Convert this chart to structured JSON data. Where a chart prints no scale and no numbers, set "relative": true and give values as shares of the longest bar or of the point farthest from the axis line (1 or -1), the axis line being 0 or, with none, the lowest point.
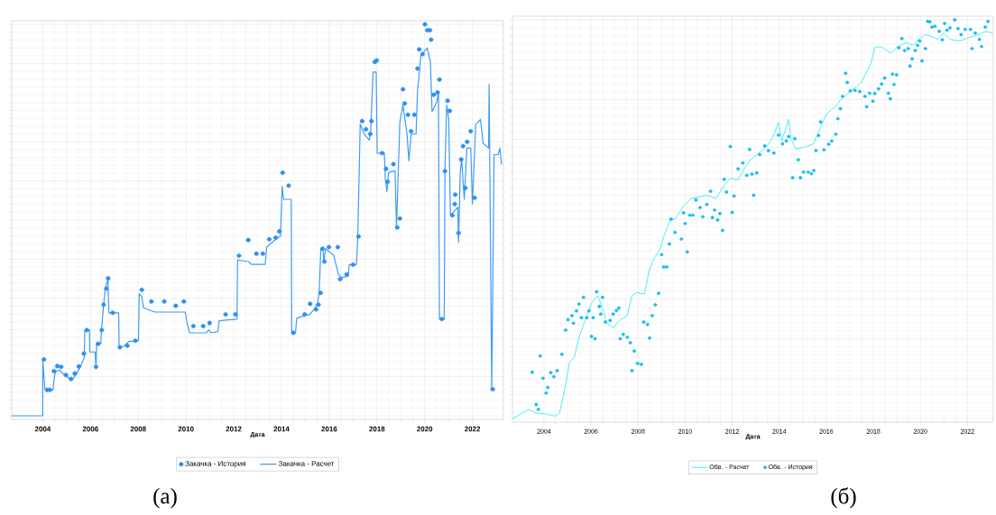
{
  "chart_data": [
    {
      "type": "line",
      "relative": true,
      "xlabel": "Дата",
      "xlim": [
        2002.7,
        2023.3
      ],
      "xticks": [
        2004,
        2006,
        2008,
        2010,
        2012,
        2014,
        2016,
        2018,
        2020,
        2022
      ],
      "grid": true,
      "legend": "bottom",
      "tick_labels": "x",
      "annotations": [
        "(а)"
      ],
      "series": [
        {
          "name": "Закачка - История",
          "type": "scatter",
          "color": "#2e90f0",
          "x": [
            2004.05,
            2004.18,
            2004.3,
            2004.47,
            2004.61,
            2004.77,
            2004.97,
            2005.18,
            2005.34,
            2005.51,
            2005.72,
            2005.85,
            2006.23,
            2006.32,
            2006.47,
            2006.55,
            2006.66,
            2006.74,
            2006.93,
            2007.23,
            2007.54,
            2007.88,
            2008.15,
            2008.55,
            2009.09,
            2009.57,
            2009.91,
            2010.31,
            2010.72,
            2010.99,
            2011.66,
            2012.07,
            2012.22,
            2012.61,
            2012.95,
            2013.22,
            2013.49,
            2013.76,
            2013.91,
            2014.05,
            2014.3,
            2014.5,
            2014.97,
            2015.2,
            2015.45,
            2015.55,
            2015.64,
            2015.72,
            2015.8,
            2015.99,
            2016.36,
            2016.46,
            2016.73,
            2017.0,
            2017.23,
            2017.38,
            2017.54,
            2017.72,
            2017.77,
            2017.91,
            2017.99,
            2018.22,
            2018.38,
            2018.45,
            2018.69,
            2018.85,
            2018.96,
            2019.09,
            2019.16,
            2019.3,
            2019.43,
            2019.57,
            2019.7,
            2019.77,
            2019.91,
            2020.01,
            2020.11,
            2020.22,
            2020.27,
            2020.38,
            2020.54,
            2020.62,
            2020.72,
            2020.85,
            2020.96,
            2021.05,
            2021.16,
            2021.26,
            2021.28,
            2021.42,
            2021.53,
            2021.61,
            2021.7,
            2021.78,
            2021.93,
            2022.09,
            2022.85
          ],
          "values": [
            0.144,
            0.066,
            0.066,
            0.114,
            0.127,
            0.125,
            0.104,
            0.094,
            0.108,
            0.126,
            0.159,
            0.219,
            0.125,
            0.184,
            0.219,
            0.284,
            0.325,
            0.351,
            0.263,
            0.175,
            0.179,
            0.192,
            0.322,
            0.292,
            0.292,
            0.281,
            0.292,
            0.229,
            0.229,
            0.237,
            0.259,
            0.259,
            0.409,
            0.449,
            0.414,
            0.414,
            0.451,
            0.455,
            0.471,
            0.621,
            0.588,
            0.212,
            0.259,
            0.286,
            0.272,
            0.284,
            0.314,
            0.427,
            0.394,
            0.431,
            0.431,
            0.349,
            0.361,
            0.386,
            0.458,
            0.753,
            0.732,
            0.72,
            0.753,
            0.904,
            0.908,
            0.671,
            0.631,
            0.598,
            0.643,
            0.481,
            0.504,
            0.834,
            0.798,
            0.769,
            0.727,
            0.769,
            0.887,
            0.936,
            0.924,
            1.0,
            0.985,
            0.985,
            0.961,
            0.82,
            0.826,
            0.859,
            0.247,
            0.625,
            0.805,
            0.779,
            0.512,
            0.541,
            0.565,
            0.467,
            0.655,
            0.689,
            0.582,
            0.7,
            0.727,
            0.557,
            0.068
          ]
        },
        {
          "name": "Закачка - Расчет",
          "color": "#3d9cf5",
          "x": [
            2002.7,
            2004.0,
            2004.0,
            2004.09,
            2004.43,
            2004.47,
            2004.53,
            2004.7,
            2004.91,
            2005.11,
            2005.24,
            2005.38,
            2005.58,
            2005.74,
            2005.76,
            2005.96,
            2005.97,
            2006.19,
            2006.23,
            2006.26,
            2006.43,
            2006.46,
            2006.55,
            2006.62,
            2006.73,
            2006.77,
            2007.18,
            2007.2,
            2007.41,
            2007.61,
            2008.01,
            2008.04,
            2008.15,
            2008.22,
            2008.69,
            2009.97,
            2010.04,
            2010.15,
            2010.85,
            2010.96,
            2011.05,
            2011.34,
            2011.39,
            2012.14,
            2012.16,
            2012.61,
            2012.74,
            2013.32,
            2013.38,
            2013.76,
            2013.96,
            2014.03,
            2014.09,
            2014.41,
            2014.43,
            2014.59,
            2014.64,
            2014.91,
            2015.18,
            2015.38,
            2015.51,
            2015.58,
            2015.65,
            2015.74,
            2015.78,
            2015.85,
            2016.19,
            2016.39,
            2016.53,
            2016.8,
            2016.84,
            2017.14,
            2017.2,
            2017.3,
            2017.47,
            2017.68,
            2017.74,
            2017.84,
            2017.97,
            2018.01,
            2018.31,
            2018.35,
            2018.42,
            2018.49,
            2018.76,
            2018.82,
            2018.96,
            2019.09,
            2019.26,
            2019.34,
            2019.43,
            2019.64,
            2019.7,
            2019.77,
            2019.84,
            2020.11,
            2020.24,
            2020.31,
            2020.51,
            2020.58,
            2020.62,
            2020.82,
            2020.85,
            2020.92,
            2021.01,
            2021.08,
            2021.26,
            2021.39,
            2021.42,
            2021.49,
            2021.55,
            2021.66,
            2021.77,
            2021.93,
            2022.0,
            2022.14,
            2022.34,
            2022.45,
            2022.68,
            2022.7,
            2022.81,
            2022.91,
            2023.08,
            2023.15,
            2023.22
          ],
          "values": [
            0,
            0,
            0.144,
            0.068,
            0.066,
            0.092,
            0.113,
            0.117,
            0.104,
            0.096,
            0.092,
            0.104,
            0.125,
            0.149,
            0.219,
            0.219,
            0.163,
            0.163,
            0.125,
            0.184,
            0.184,
            0.219,
            0.284,
            0.325,
            0.349,
            0.263,
            0.263,
            0.174,
            0.178,
            0.19,
            0.192,
            0.312,
            0.304,
            0.276,
            0.265,
            0.265,
            0.239,
            0.212,
            0.212,
            0.219,
            0.212,
            0.215,
            0.243,
            0.247,
            0.398,
            0.394,
            0.387,
            0.387,
            0.431,
            0.451,
            0.459,
            0.586,
            0.553,
            0.553,
            0.212,
            0.212,
            0.249,
            0.255,
            0.259,
            0.272,
            0.288,
            0.314,
            0.427,
            0.427,
            0.394,
            0.427,
            0.41,
            0.361,
            0.353,
            0.357,
            0.386,
            0.386,
            0.459,
            0.745,
            0.72,
            0.704,
            0.728,
            0.878,
            0.878,
            0.671,
            0.671,
            0.606,
            0.573,
            0.622,
            0.626,
            0.48,
            0.749,
            0.794,
            0.72,
            0.651,
            0.72,
            0.72,
            0.83,
            0.871,
            0.92,
            0.94,
            0.904,
            0.777,
            0.802,
            0.826,
            0.247,
            0.247,
            0.626,
            0.794,
            0.757,
            0.512,
            0.524,
            0.533,
            0.443,
            0.622,
            0.655,
            0.553,
            0.684,
            0.684,
            0.541,
            0.745,
            0.757,
            0.696,
            0.684,
            0.847,
            0.068,
            0.667,
            0.667,
            0.684,
            0.643
          ]
        }
      ]
    },
    {
      "type": "line",
      "relative": true,
      "xlabel": "Дата",
      "xlim": [
        2002.66,
        2023.1
      ],
      "xticks": [
        2004,
        2006,
        2008,
        2010,
        2012,
        2014,
        2016,
        2018,
        2020,
        2022
      ],
      "grid": true,
      "legend": "bottom",
      "tick_labels": "x",
      "annotations": [
        "(б)"
      ],
      "series": [
        {
          "name": "Обв. - Расчет",
          "color": "#33eeee",
          "x": [
            2002.66,
            2003.36,
            2003.63,
            2004.03,
            2004.29,
            2004.49,
            2004.66,
            2004.89,
            2005.09,
            2005.29,
            2005.49,
            2005.75,
            2006.02,
            2006.29,
            2006.48,
            2006.68,
            2006.94,
            2007.21,
            2007.54,
            2007.74,
            2007.94,
            2008.27,
            2008.47,
            2008.67,
            2008.93,
            2009.13,
            2009.33,
            2009.6,
            2009.93,
            2010.26,
            2010.6,
            2010.92,
            2011.32,
            2011.59,
            2011.92,
            2012.25,
            2012.51,
            2012.78,
            2013.11,
            2013.44,
            2013.71,
            2013.97,
            2014.11,
            2014.4,
            2014.5,
            2014.7,
            2015.03,
            2015.43,
            2015.63,
            2015.83,
            2016.03,
            2016.36,
            2016.63,
            2017.02,
            2017.49,
            2017.88,
            2018.08,
            2018.35,
            2018.75,
            2019.01,
            2019.41,
            2019.67,
            2019.93,
            2020.2,
            2020.46,
            2020.73,
            2020.99,
            2021.26,
            2021.66,
            2022.06,
            2022.46,
            2022.79,
            2023.06
          ],
          "values": [
            0,
            0.023,
            0.014,
            0.012,
            0.008,
            0.006,
            0.014,
            0.076,
            0.142,
            0.153,
            0.204,
            0.246,
            0.289,
            0.308,
            0.277,
            0.239,
            0.227,
            0.246,
            0.258,
            0.308,
            0.316,
            0.312,
            0.37,
            0.401,
            0.424,
            0.463,
            0.494,
            0.502,
            0.533,
            0.552,
            0.556,
            0.56,
            0.552,
            0.579,
            0.603,
            0.599,
            0.626,
            0.649,
            0.665,
            0.68,
            0.703,
            0.742,
            0.696,
            0.75,
            0.703,
            0.676,
            0.68,
            0.688,
            0.711,
            0.742,
            0.765,
            0.781,
            0.8,
            0.82,
            0.843,
            0.889,
            0.932,
            0.932,
            0.916,
            0.932,
            0.943,
            0.936,
            0.951,
            0.963,
            0.959,
            0.951,
            0.967,
            0.951,
            0.947,
            0.955,
            0.963,
            0.971,
            0.967
          ]
        },
        {
          "name": "Обв. - История",
          "type": "scatter",
          "color": "#1cbcf2",
          "x": [
            2003.5,
            2003.67,
            2003.76,
            2003.84,
            2003.96,
            2004.09,
            2004.16,
            2004.29,
            2004.42,
            2004.56,
            2004.76,
            2004.92,
            2005.02,
            2005.19,
            2005.25,
            2005.38,
            2005.49,
            2005.59,
            2005.68,
            2005.82,
            2005.91,
            2006.02,
            2006.09,
            2006.17,
            2006.24,
            2006.35,
            2006.41,
            2006.49,
            2006.61,
            2006.81,
            2006.94,
            2007.08,
            2007.18,
            2007.24,
            2007.37,
            2007.54,
            2007.67,
            2007.74,
            2007.84,
            2007.98,
            2008.14,
            2008.24,
            2008.4,
            2008.49,
            2008.6,
            2008.73,
            2008.87,
            2009.0,
            2009.09,
            2009.22,
            2009.33,
            2009.4,
            2009.57,
            2009.84,
            2009.93,
            2010.0,
            2010.09,
            2010.2,
            2010.33,
            2010.46,
            2010.63,
            2010.75,
            2010.92,
            2011.08,
            2011.16,
            2011.25,
            2011.38,
            2011.48,
            2011.59,
            2011.66,
            2011.76,
            2011.92,
            2012.0,
            2012.08,
            2012.25,
            2012.45,
            2012.62,
            2012.74,
            2012.84,
            2012.91,
            2013.04,
            2013.17,
            2013.38,
            2013.54,
            2013.77,
            2013.97,
            2014.14,
            2014.3,
            2014.4,
            2014.57,
            2014.66,
            2014.81,
            2014.9,
            2015.03,
            2015.23,
            2015.37,
            2015.47,
            2015.56,
            2015.67,
            2015.76,
            2015.9,
            2016.1,
            2016.23,
            2016.4,
            2016.49,
            2016.6,
            2016.69,
            2016.82,
            2016.89,
            2017.02,
            2017.22,
            2017.42,
            2017.64,
            2017.72,
            2017.84,
            2017.98,
            2018.06,
            2018.22,
            2018.35,
            2018.48,
            2018.64,
            2018.72,
            2018.81,
            2018.88,
            2018.99,
            2019.08,
            2019.21,
            2019.33,
            2019.48,
            2019.56,
            2019.65,
            2019.78,
            2019.88,
            2019.97,
            2020.07,
            2020.21,
            2020.31,
            2020.4,
            2020.49,
            2020.62,
            2020.8,
            2020.93,
            2021.03,
            2021.13,
            2021.26,
            2021.46,
            2021.6,
            2021.73,
            2021.9,
            2022.13,
            2022.19,
            2022.33,
            2022.51,
            2022.6,
            2022.76,
            2022.87
          ],
          "values": [
            0.116,
            0.035,
            0.023,
            0.157,
            0.101,
            0.064,
            0.078,
            0.115,
            0.105,
            0.12,
            0.161,
            0.222,
            0.248,
            0.258,
            0.239,
            0.27,
            0.287,
            0.253,
            0.304,
            0.253,
            0.27,
            0.206,
            0.253,
            0.2,
            0.318,
            0.281,
            0.262,
            0.304,
            0.242,
            0.246,
            0.262,
            0.271,
            0.277,
            0.2,
            0.211,
            0.204,
            0.19,
            0.12,
            0.169,
            0.138,
            0.136,
            0.242,
            0.236,
            0.202,
            0.258,
            0.285,
            0.314,
            0.411,
            0.38,
            0.38,
            0.438,
            0.5,
            0.467,
            0.45,
            0.516,
            0.489,
            0.418,
            0.51,
            0.51,
            0.548,
            0.529,
            0.506,
            0.537,
            0.57,
            0.504,
            0.523,
            0.498,
            0.514,
            0.472,
            0.6,
            0.568,
            0.682,
            0.517,
            0.558,
            0.626,
            0.641,
            0.61,
            0.675,
            0.613,
            0.56,
            0.616,
            0.662,
            0.684,
            0.672,
            0.666,
            0.711,
            0.689,
            0.696,
            0.707,
            0.604,
            0.702,
            0.649,
            0.604,
            0.618,
            0.618,
            0.614,
            0.622,
            0.672,
            0.71,
            0.744,
            0.674,
            0.688,
            0.696,
            0.713,
            0.752,
            0.777,
            0.808,
            0.866,
            0.843,
            0.822,
            0.823,
            0.82,
            0.808,
            0.782,
            0.816,
            0.796,
            0.815,
            0.827,
            0.839,
            0.854,
            0.816,
            0.802,
            0.864,
            0.838,
            0.862,
            0.93,
            0.953,
            0.923,
            0.928,
            0.884,
            0.902,
            0.923,
            0.936,
            0.947,
            0.897,
            0.928,
            0.996,
            0.995,
            0.982,
            0.984,
            0.971,
            0.95,
            0.991,
            0.974,
            0.98,
            1.0,
            0.978,
            0.963,
            0.976,
            0.976,
            0.928,
            0.967,
            0.951,
            0.933,
            0.982,
            0.996
          ]
        }
      ]
    }
  ]
}
